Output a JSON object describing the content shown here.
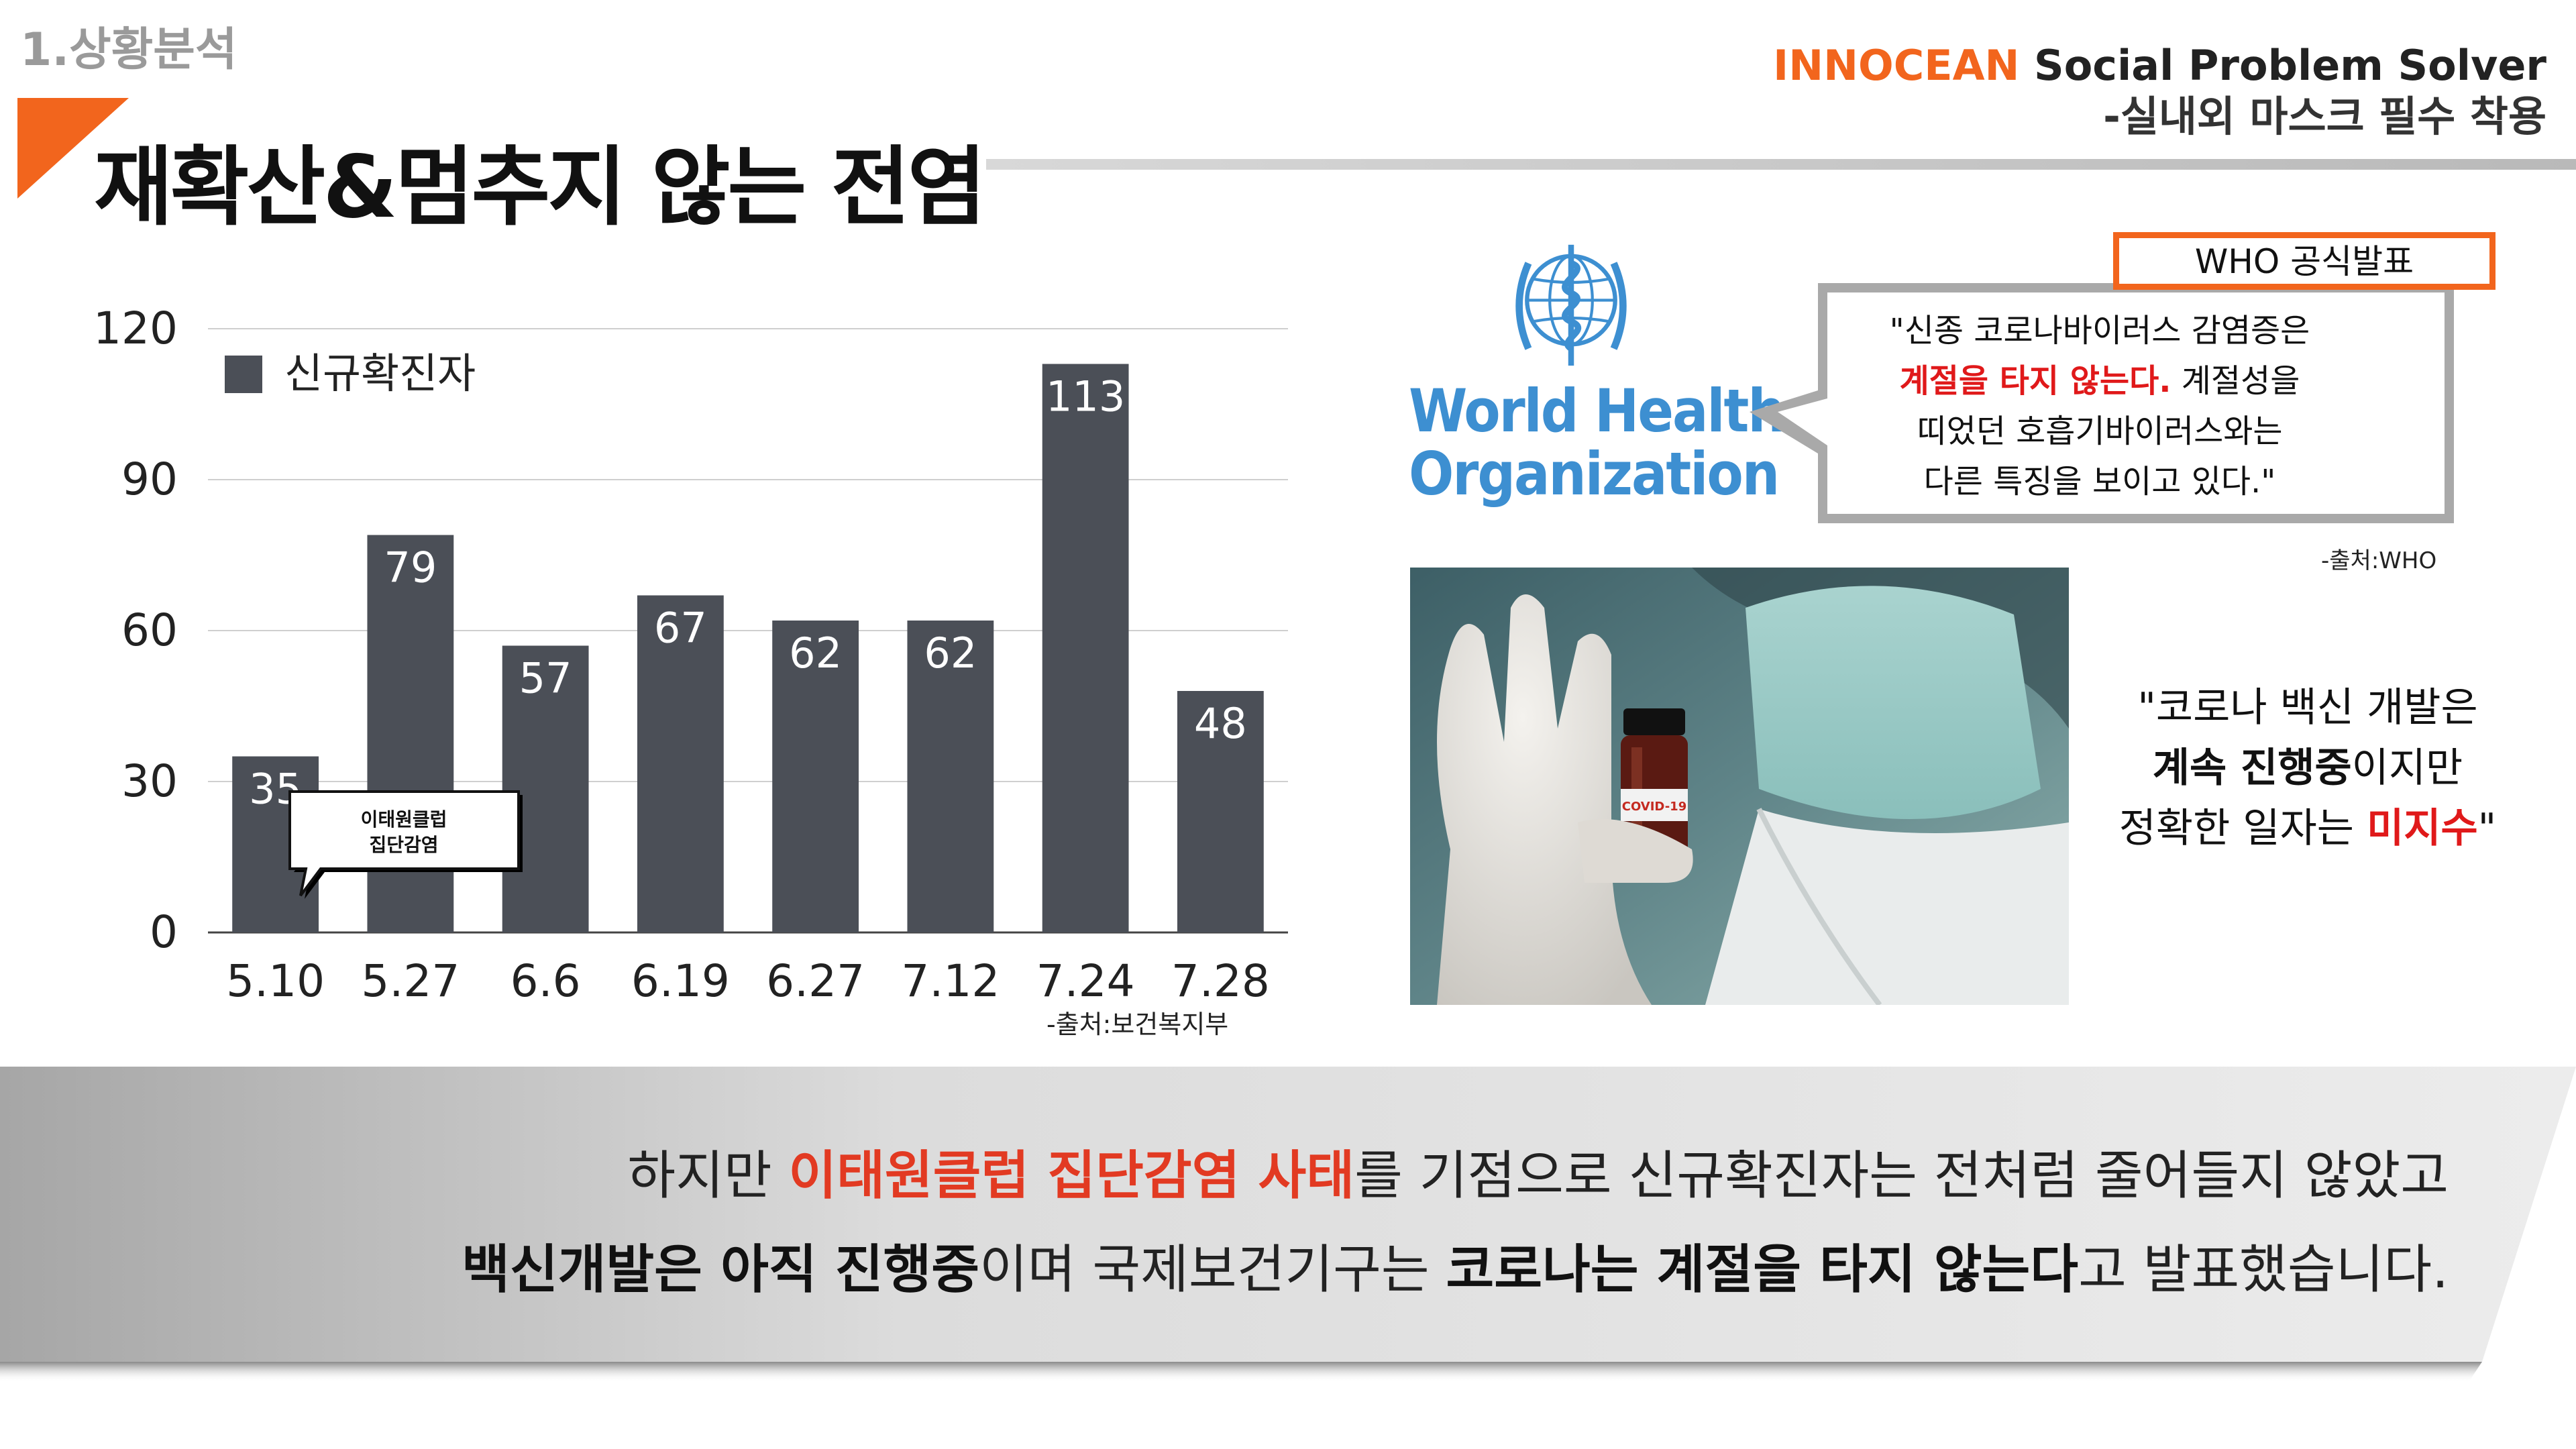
{
  "header": {
    "section_label": "1.상황분석",
    "title": "재확산&멈추지 않는 전염",
    "brand_org": "INNOCEAN",
    "brand_tag": "Social Problem Solver",
    "brand_sub": "-실내외 마스크 필수 착용"
  },
  "colors": {
    "accent": "#f2651d",
    "bar": "#4b4f57",
    "who_blue": "#3d8fd1",
    "emphasis_red": "#e0191a"
  },
  "chart_data": {
    "type": "bar",
    "categories": [
      "5.10",
      "5.27",
      "6.6",
      "6.19",
      "6.27",
      "7.12",
      "7.24",
      "7.28"
    ],
    "series": [
      {
        "name": "신규확진자",
        "values": [
          35,
          79,
          57,
          67,
          62,
          62,
          113,
          48
        ]
      }
    ],
    "ylim": [
      0,
      120
    ],
    "yticks": [
      0,
      30,
      60,
      90,
      120
    ],
    "grid": true,
    "legend_position": "top-left",
    "annotation": {
      "category": "5.10",
      "lines": [
        "이태원클럽",
        "집단감염"
      ]
    },
    "source": "-출처:보건복지부"
  },
  "who": {
    "name_line1": "World Health",
    "name_line2": "Organization",
    "badge": "WHO 공식발표",
    "quote_line1": "\"신종 코로나바이러스 감염증은",
    "quote_line2_red": "계절을 타지 않는다.",
    "quote_line2_rest": " 계절성을",
    "quote_line3": "띠었던 호흡기바이러스와는",
    "quote_line4": "다른 특징을 보이고 있다.\"",
    "source": "-출처:WHO",
    "icon": "who-emblem-icon"
  },
  "photo": {
    "vial_label": "COVID-19"
  },
  "vaccine_quote": {
    "line1": "\"코로나 백신 개발은",
    "line2_bold": "계속 진행중",
    "line2_rest": "이지만",
    "line3_rest": "정확한 일자는 ",
    "line3_red": "미지수",
    "line3_end": "\""
  },
  "banner": {
    "l1_a": "하지만 ",
    "l1_red": "이태원클럽 집단감염 사태",
    "l1_b": "를 기점으로 신규확진자는  전처럼 줄어들지  않았고",
    "l2_bold1": "백신개발은 아직 진행중",
    "l2_a": "이며 국제보건기구는 ",
    "l2_bold2": "코로나는 계절을 타지 않는다",
    "l2_b": "고 발표했습니다."
  }
}
